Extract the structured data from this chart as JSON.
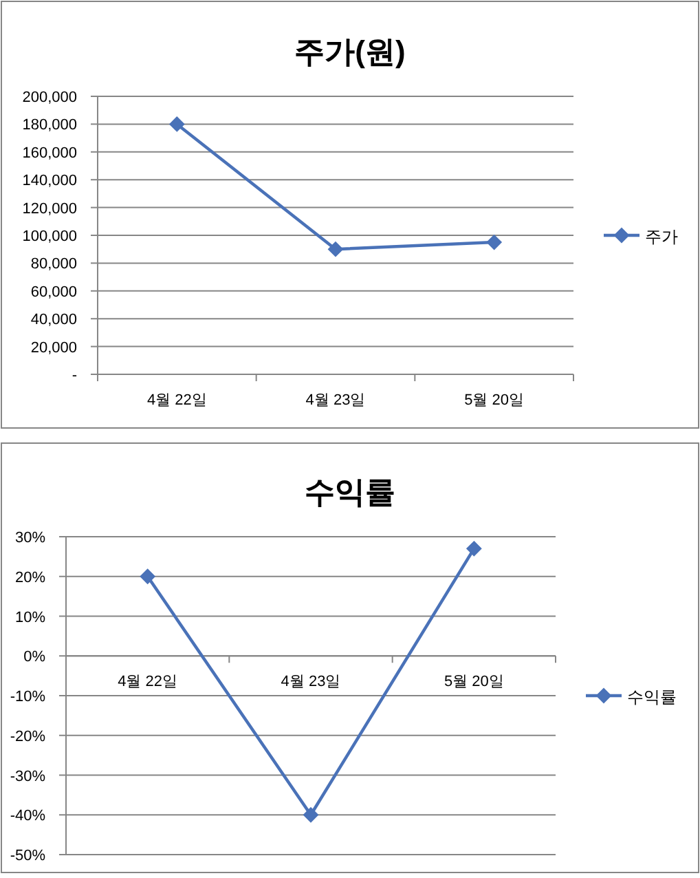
{
  "chart_data": [
    {
      "type": "line",
      "title": "주가(원)",
      "categories": [
        "4월 22일",
        "4월 23일",
        "5월 20일"
      ],
      "series": [
        {
          "name": "주가",
          "color": "#4a72b8",
          "values": [
            180000,
            90000,
            95000
          ]
        }
      ],
      "ylim": [
        0,
        200000
      ],
      "yticks": [
        {
          "value": 0,
          "label": "-"
        },
        {
          "value": 20000,
          "label": "20,000"
        },
        {
          "value": 40000,
          "label": "40,000"
        },
        {
          "value": 60000,
          "label": "60,000"
        },
        {
          "value": 80000,
          "label": "80,000"
        },
        {
          "value": 100000,
          "label": "100,000"
        },
        {
          "value": 120000,
          "label": "120,000"
        },
        {
          "value": 140000,
          "label": "140,000"
        },
        {
          "value": 160000,
          "label": "160,000"
        },
        {
          "value": 180000,
          "label": "180,000"
        },
        {
          "value": 200000,
          "label": "200,000"
        }
      ],
      "grid": "y",
      "legend": "right",
      "marker": "diamond",
      "line_style": "solid"
    },
    {
      "type": "line",
      "title": "수익률",
      "categories": [
        "4월 22일",
        "4월 23일",
        "5월 20일"
      ],
      "series": [
        {
          "name": "수익률",
          "color": "#4a72b8",
          "values": [
            20,
            -40,
            27
          ]
        }
      ],
      "ylim": [
        -50,
        30
      ],
      "yticks": [
        {
          "value": -50,
          "label": "-50%"
        },
        {
          "value": -40,
          "label": "-40%"
        },
        {
          "value": -30,
          "label": "-30%"
        },
        {
          "value": -20,
          "label": "-20%"
        },
        {
          "value": -10,
          "label": "-10%"
        },
        {
          "value": 0,
          "label": "0%"
        },
        {
          "value": 10,
          "label": "10%"
        },
        {
          "value": 20,
          "label": "20%"
        },
        {
          "value": 30,
          "label": "30%"
        }
      ],
      "grid": "y",
      "legend": "right",
      "marker": "diamond",
      "line_style": "solid"
    }
  ]
}
